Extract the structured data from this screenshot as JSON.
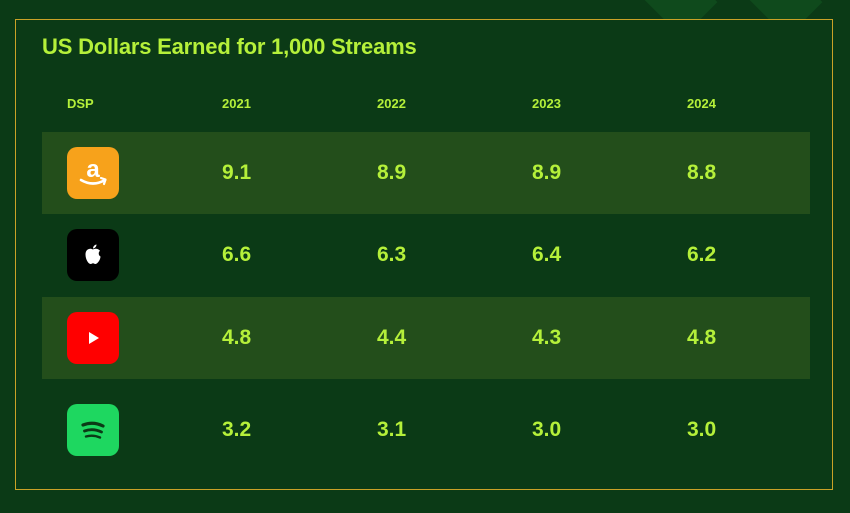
{
  "colors": {
    "background": "#0b3a16",
    "row_shade": "#234e1b",
    "text_accent": "#b5f03a",
    "border": "#c9a227"
  },
  "chart_data": {
    "type": "table",
    "title": "US Dollars Earned for 1,000 Streams",
    "columns": [
      "DSP",
      "2021",
      "2022",
      "2023",
      "2024"
    ],
    "rows": [
      {
        "dsp_icon": "amazon-music-icon",
        "values": [
          "9.1",
          "8.9",
          "8.9",
          "8.8"
        ]
      },
      {
        "dsp_icon": "apple-music-icon",
        "values": [
          "6.6",
          "6.3",
          "6.4",
          "6.2"
        ]
      },
      {
        "dsp_icon": "youtube-icon",
        "values": [
          "4.8",
          "4.4",
          "4.3",
          "4.8"
        ]
      },
      {
        "dsp_icon": "spotify-icon",
        "values": [
          "3.2",
          "3.1",
          "3.0",
          "3.0"
        ]
      }
    ]
  }
}
